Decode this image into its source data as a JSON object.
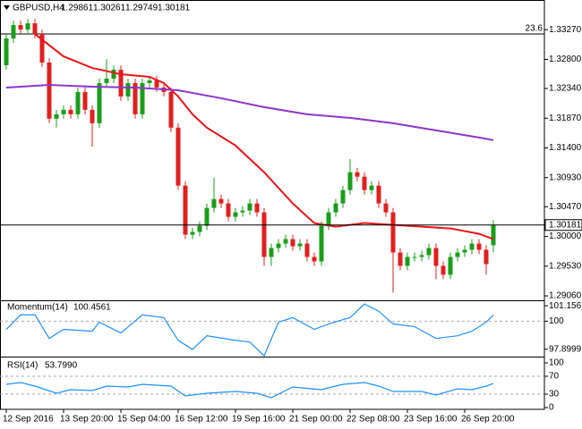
{
  "chart_data": {
    "type": "candlestick",
    "title": "GBPUSD,H4",
    "categories": [
      "12 Sep 2016",
      null,
      null,
      null,
      null,
      null,
      null,
      null,
      "13 Sep 20:00",
      null,
      null,
      null,
      null,
      null,
      null,
      null,
      "15 Sep 04:00",
      null,
      null,
      null,
      null,
      null,
      null,
      null,
      "16 Sep 12:00",
      null,
      null,
      null,
      null,
      null,
      null,
      null,
      "19 Sep 16:00",
      null,
      null,
      null,
      null,
      null,
      null,
      null,
      "21 Sep 00:00",
      null,
      null,
      null,
      null,
      null,
      null,
      null,
      "22 Sep 08:00",
      null,
      null,
      null,
      null,
      null,
      null,
      null,
      "23 Sep 16:00",
      null,
      null,
      null,
      null,
      null,
      null,
      null,
      "26 Sep 20:00",
      null,
      null,
      null,
      null
    ],
    "open": [
      1.32708,
      1.33131,
      1.33343,
      1.33272,
      1.33371,
      1.33202,
      1.3275,
      1.31862,
      1.31932,
      1.32003,
      1.31932,
      1.32285,
      1.32003,
      1.31791,
      1.32426,
      1.32496,
      1.32637,
      1.32214,
      1.32426,
      1.31932,
      1.32426,
      1.32468,
      1.32355,
      1.32285,
      1.31721,
      1.30804,
      1.30028,
      1.30071,
      1.30169,
      1.30451,
      1.30592,
      1.30522,
      1.3031,
      1.30381,
      1.30409,
      1.30522,
      1.30381,
      1.29676,
      1.29817,
      1.29887,
      1.29958,
      1.29845,
      1.29887,
      1.29676,
      1.29605,
      1.30169,
      1.30381,
      1.30522,
      1.30733,
      1.31015,
      1.30945,
      1.30733,
      1.30804,
      1.30522,
      1.30381,
      1.29746,
      1.29535,
      1.29676,
      1.29676,
      1.29704,
      1.29817,
      1.29535,
      1.29394,
      1.29676,
      1.29746,
      1.29789,
      1.29887,
      1.29789,
      1.29861
    ],
    "high": [
      1.33201,
      1.33413,
      1.33413,
      1.33441,
      1.33441,
      1.33272,
      1.3282,
      1.32002,
      1.32073,
      1.32073,
      1.32355,
      1.32355,
      1.32073,
      1.32496,
      1.32806,
      1.32707,
      1.32707,
      1.32496,
      1.32496,
      1.32496,
      1.32538,
      1.32538,
      1.32425,
      1.32355,
      1.31791,
      1.30874,
      1.30141,
      1.30239,
      1.30521,
      1.30932,
      1.30662,
      1.30592,
      1.30451,
      1.30479,
      1.30592,
      1.30592,
      1.30451,
      1.29887,
      1.29957,
      1.30028,
      1.30028,
      1.29957,
      1.29957,
      1.29746,
      1.30239,
      1.30451,
      1.30592,
      1.30803,
      1.31225,
      1.31085,
      1.31015,
      1.30874,
      1.30874,
      1.30592,
      1.30451,
      1.29816,
      1.29746,
      1.29746,
      1.29774,
      1.29887,
      1.29887,
      1.29605,
      1.29746,
      1.29816,
      1.29859,
      1.29957,
      1.29957,
      1.29859,
      1.30261
    ],
    "low": [
      1.32638,
      1.33061,
      1.33202,
      1.33202,
      1.33132,
      1.3268,
      1.31792,
      1.31722,
      1.31862,
      1.31862,
      1.31862,
      1.31933,
      1.31421,
      1.31721,
      1.32356,
      1.32426,
      1.32144,
      1.32144,
      1.31862,
      1.31862,
      1.32356,
      1.32285,
      1.32215,
      1.31651,
      1.30734,
      1.29958,
      1.29958,
      1.30001,
      1.30099,
      1.30381,
      1.30452,
      1.3024,
      1.3024,
      1.30311,
      1.30339,
      1.30311,
      1.29535,
      1.29535,
      1.29747,
      1.29817,
      1.29775,
      1.29775,
      1.29606,
      1.29535,
      1.29535,
      1.30099,
      1.30311,
      1.30452,
      1.30663,
      1.30875,
      1.30663,
      1.30663,
      1.30452,
      1.30311,
      1.29112,
      1.29465,
      1.29465,
      1.29606,
      1.29606,
      1.29634,
      1.29324,
      1.29324,
      1.29324,
      1.29606,
      1.29676,
      1.29719,
      1.29719,
      1.29393,
      1.29749
    ],
    "close": [
      1.33131,
      1.33343,
      1.33272,
      1.33371,
      1.33202,
      1.3275,
      1.31862,
      1.31932,
      1.32003,
      1.31932,
      1.32285,
      1.32003,
      1.31791,
      1.32426,
      1.32496,
      1.32637,
      1.32214,
      1.32426,
      1.31932,
      1.32426,
      1.32468,
      1.32355,
      1.32285,
      1.31721,
      1.30804,
      1.30028,
      1.30071,
      1.30169,
      1.30451,
      1.30592,
      1.30522,
      1.3031,
      1.30381,
      1.30409,
      1.30522,
      1.30381,
      1.29676,
      1.29817,
      1.29887,
      1.29958,
      1.29845,
      1.29887,
      1.29676,
      1.29605,
      1.30169,
      1.30381,
      1.30522,
      1.30733,
      1.31015,
      1.30945,
      1.30733,
      1.30804,
      1.30522,
      1.30381,
      1.29746,
      1.29535,
      1.29676,
      1.29676,
      1.29704,
      1.29817,
      1.29535,
      1.29394,
      1.29676,
      1.29746,
      1.29789,
      1.29887,
      1.29789,
      1.29563,
      1.30181
    ],
    "up_color": "#1a9e1a",
    "down_color": "#e0201f",
    "ylim": [
      1.2899,
      1.3374
    ],
    "yticks": [
      {
        "value": 1.3327,
        "label": "1.33270"
      },
      {
        "value": 1.328,
        "label": "1.32800"
      },
      {
        "value": 1.3234,
        "label": "1.32340"
      },
      {
        "value": 1.3187,
        "label": "1.31870"
      },
      {
        "value": 1.314,
        "label": "1.31400"
      },
      {
        "value": 1.3093,
        "label": "1.30930"
      },
      {
        "value": 1.3047,
        "label": "1.30470"
      },
      {
        "value": 1.3,
        "label": "1.30000"
      },
      {
        "value": 1.2953,
        "label": "1.29530"
      },
      {
        "value": 1.2906,
        "label": "1.29060"
      }
    ],
    "overlays": [
      {
        "color": "#e8161b",
        "x": [
          4,
          8,
          12,
          16,
          20,
          22,
          24,
          26,
          28,
          32,
          36,
          40,
          43,
          46,
          50,
          54,
          58,
          62,
          66,
          68
        ],
        "values": [
          1.33202,
          1.32848,
          1.32665,
          1.32566,
          1.32524,
          1.32426,
          1.32214,
          1.31932,
          1.31721,
          1.31438,
          1.31015,
          1.30522,
          1.30212,
          1.30155,
          1.30212,
          1.30183,
          1.30155,
          1.30127,
          1.30042,
          1.29958
        ]
      },
      {
        "color": "#8e35c8",
        "x": [
          0,
          6,
          12,
          18,
          24,
          30,
          36,
          42,
          48,
          54,
          60,
          66,
          68
        ],
        "values": [
          1.32355,
          1.32397,
          1.32369,
          1.32355,
          1.32312,
          1.32186,
          1.32045,
          1.31932,
          1.31875,
          1.31791,
          1.31678,
          1.31565,
          1.31523
        ]
      }
    ],
    "level": {
      "label": "23.6",
      "value": 1.33202
    },
    "indicators": [
      {
        "title": "Momentum(14)",
        "color": "#1e90ff",
        "x": [
          0,
          2,
          4,
          6,
          8,
          12,
          13,
          16,
          19,
          22,
          24,
          26,
          28,
          32,
          34,
          36,
          38,
          40,
          43,
          45,
          48,
          50,
          52,
          54,
          57,
          60,
          63,
          65,
          67,
          68
        ],
        "values": [
          99.39,
          100.48,
          100.48,
          98.71,
          99.39,
          99.25,
          99.93,
          99.12,
          100.48,
          100.27,
          98.57,
          97.89,
          98.91,
          98.57,
          98.44,
          97.41,
          99.93,
          100.27,
          99.39,
          99.8,
          100.27,
          101.29,
          100.75,
          99.8,
          99.59,
          98.71,
          98.91,
          99.25,
          99.93,
          100.4561
        ],
        "ylim": [
          97.35,
          101.5
        ],
        "yticks": [
          101.1567,
          100,
          97.8999
        ],
        "levels": [
          100
        ]
      },
      {
        "title": "RSI(14)",
        "color": "#1e90ff",
        "x": [
          0,
          2,
          4,
          7,
          9,
          12,
          14,
          17,
          19,
          23,
          25,
          28,
          32,
          35,
          37,
          40,
          44,
          47,
          50,
          52,
          54,
          58,
          60,
          63,
          65,
          67,
          68
        ],
        "values": [
          52,
          56,
          48,
          32,
          40,
          38,
          48,
          46,
          52,
          48,
          26,
          32,
          36,
          32,
          22,
          46,
          40,
          52,
          56,
          48,
          36,
          36,
          28,
          42,
          40,
          48,
          53.799
        ],
        "value_labels": [
          null,
          null,
          null,
          null,
          null,
          null,
          null,
          null,
          null,
          null,
          null,
          null,
          null,
          null,
          null,
          null,
          null,
          null,
          null,
          null,
          null,
          null,
          null,
          null,
          null,
          null,
          "53.7990"
        ],
        "ylim": [
          -4,
          112
        ],
        "yticks": [
          100,
          70,
          30,
          0
        ],
        "levels": [
          70,
          30
        ]
      }
    ]
  }
}
